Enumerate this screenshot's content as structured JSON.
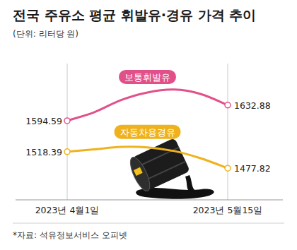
{
  "chart_data": {
    "type": "line",
    "title": "전국 주유소 평균 휘발유·경유 가격 추이",
    "subtitle": "(단위: 리터당 원)",
    "source": "*자료: 석유정보서비스 오피넷",
    "categories": [
      "2023년 4월1일",
      null,
      null,
      null,
      null,
      null,
      "2023년 5월15일"
    ],
    "series": [
      {
        "name": "보통휘발유",
        "color": "#e2508a",
        "values": [
          1594.59,
          1615,
          1645,
          1664,
          1671,
          1660,
          1632.88
        ],
        "value_labels": [
          "1594.59",
          null,
          null,
          null,
          null,
          null,
          "1632.88"
        ]
      },
      {
        "name": "자동차용경유",
        "color": "#efb21c",
        "values": [
          1518.39,
          1524,
          1530,
          1529,
          1520,
          1502,
          1477.82
        ],
        "value_labels": [
          "1518.39",
          null,
          null,
          null,
          null,
          null,
          "1477.82"
        ]
      }
    ],
    "ylim": [
      1400,
      1735
    ],
    "tick_labels": "x",
    "grid": false
  }
}
